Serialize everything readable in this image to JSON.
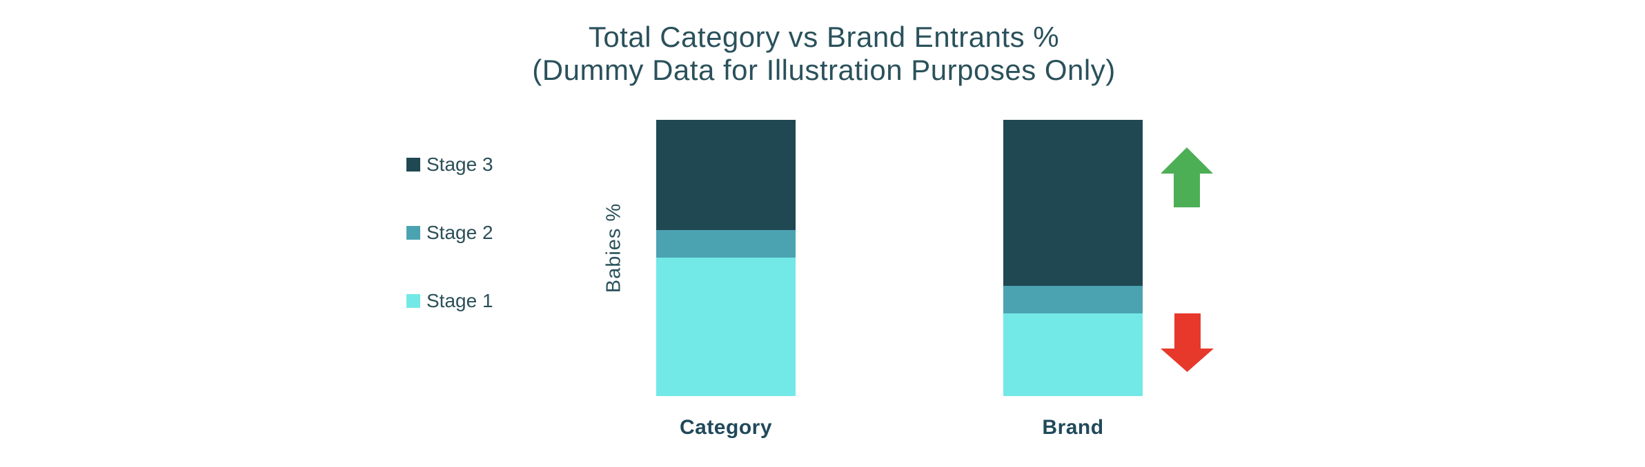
{
  "chart_data": {
    "type": "bar",
    "stacking": "percent",
    "title": "Total Category vs Brand Entrants %",
    "subtitle": "(Dummy Data for Illustration Purposes Only)",
    "ylabel": "Babies %",
    "xlabel": "",
    "categories": [
      "Category",
      "Brand"
    ],
    "series": [
      {
        "name": "Stage 1",
        "color": "#73E9E7",
        "values": [
          50,
          30
        ]
      },
      {
        "name": "Stage 2",
        "color": "#4BA3B1",
        "values": [
          10,
          10
        ]
      },
      {
        "name": "Stage 3",
        "color": "#1F4852",
        "values": [
          40,
          60
        ]
      }
    ],
    "ylim": [
      0,
      100
    ],
    "grid": false,
    "axis_ticks_visible": false,
    "legend_position": "left",
    "annotations": {
      "up_arrow": {
        "icon": "arrow-up",
        "color": "#4CAE55"
      },
      "down_arrow": {
        "icon": "arrow-down",
        "color": "#E6392B"
      }
    }
  },
  "text_color": "#2A515B"
}
